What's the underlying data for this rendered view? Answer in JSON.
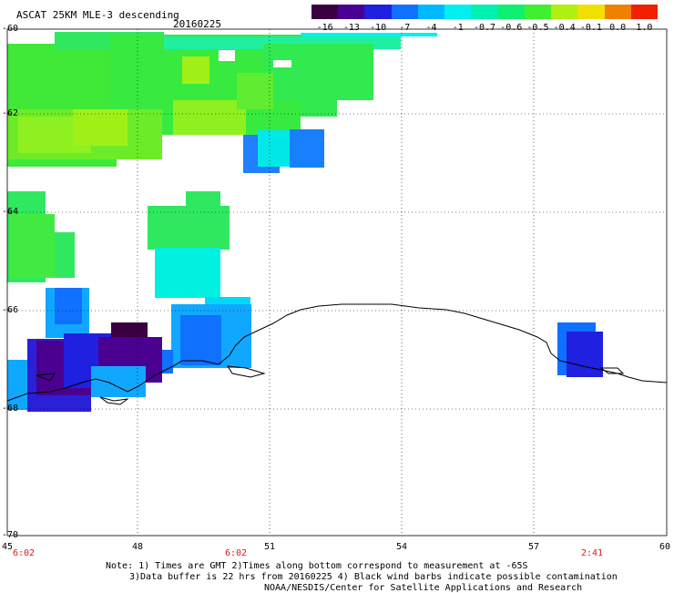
{
  "header": {
    "title": "ASCAT 25KM MLE-3 descending",
    "date": "20160225"
  },
  "colorbar": {
    "labels": [
      "-16",
      "-13",
      "-10",
      "-7",
      "-4",
      "-1",
      "-0.7",
      "-0.6",
      "-0.5",
      "-0.4",
      "-0.1",
      "0.0",
      "1.0"
    ],
    "colors": [
      "#3a0040",
      "#4a0090",
      "#2020e0",
      "#1070ff",
      "#00b8ff",
      "#00f0f0",
      "#00f0b0",
      "#10f070",
      "#40f030",
      "#b0f010",
      "#f0e000",
      "#f08000",
      "#f02000"
    ]
  },
  "axes": {
    "lat_labels": [
      "-60",
      "-62",
      "-64",
      "-66",
      "-68",
      "-70"
    ],
    "lon_labels": [
      "45",
      "48",
      "51",
      "54",
      "57",
      "60"
    ],
    "times": [
      "6:02",
      "6:02",
      "2:41"
    ]
  },
  "notes": [
    "Note: 1) Times are GMT 2)Times along bottom correspond to measurement at -65S",
    "3)Data buffer is 22 hrs from 20160225 4) Black wind barbs indicate possible contamination",
    "NOAA/NESDIS/Center for Satellite Applications and Research"
  ]
}
